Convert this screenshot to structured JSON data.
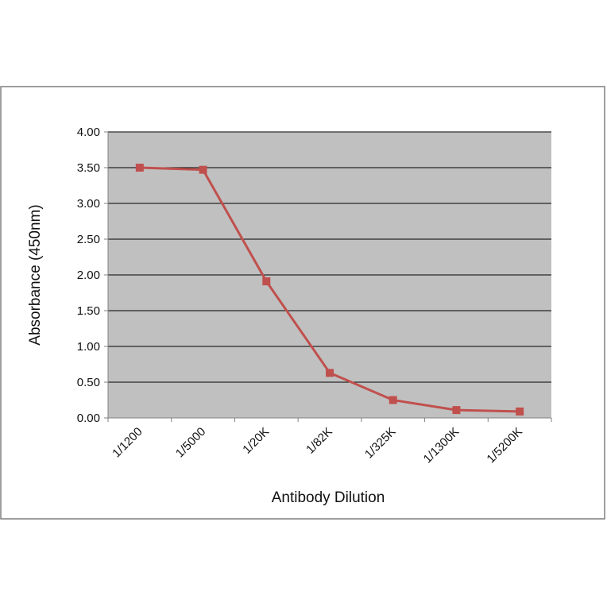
{
  "chart_data": {
    "type": "line",
    "xlabel": "Antibody Dilution",
    "ylabel": "Absorbance (450nm)",
    "categories": [
      "1/1200",
      "1/5000",
      "1/20K",
      "1/82K",
      "1/325K",
      "1/1300K",
      "1/5200K"
    ],
    "series": [
      {
        "values": [
          3.5,
          3.47,
          1.91,
          0.63,
          0.25,
          0.11,
          0.09
        ],
        "color": "#c0504d",
        "marker": "square"
      }
    ],
    "ylim": [
      0,
      4
    ],
    "yticks": [
      "0.00",
      "0.50",
      "1.00",
      "1.50",
      "2.00",
      "2.50",
      "3.00",
      "3.50",
      "4.00"
    ],
    "grid": "horizontal",
    "legend": "none",
    "plot_background": "#c0c0c0"
  }
}
